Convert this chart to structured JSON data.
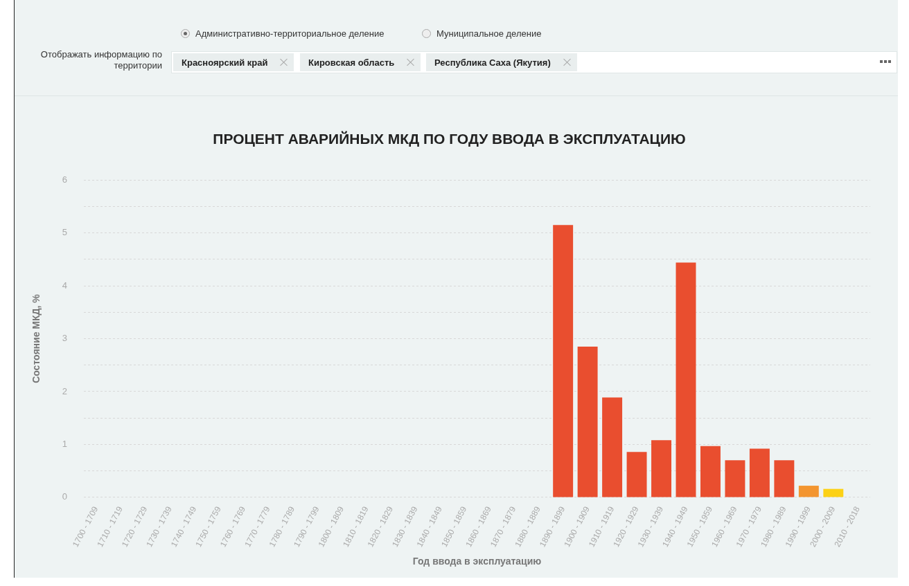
{
  "chart_data": {
    "type": "bar",
    "title": "ПРОЦЕНТ АВАРИЙНЫХ МКД ПО ГОДУ ВВОДА В ЭКСПЛУАТАЦИЮ",
    "xlabel": "Год ввода в эксплуатацию",
    "ylabel": "Состояние МКД, %",
    "annotations": [
      "Административно-территориальное деление",
      "Муниципальное деление",
      "Отображать информацию по территории",
      "Красноярский край",
      "Кировская область",
      "Республика Саха (Якутия)"
    ],
    "categories": [
      "1700 - 1709",
      "1710 - 1719",
      "1720 - 1729",
      "1730 - 1739",
      "1740 - 1749",
      "1750 - 1759",
      "1760 - 1769",
      "1770 - 1779",
      "1780 - 1789",
      "1790 - 1799",
      "1800 - 1809",
      "1810 - 1819",
      "1820 - 1829",
      "1830 - 1839",
      "1840 - 1849",
      "1850 - 1859",
      "1860 - 1869",
      "1870 - 1879",
      "1880 - 1889",
      "1890 - 1899",
      "1900 - 1909",
      "1910 - 1919",
      "1920 - 1929",
      "1930 - 1939",
      "1940 - 1949",
      "1950 - 1959",
      "1960 - 1969",
      "1970 - 1979",
      "1980 - 1989",
      "1990 - 1999",
      "2000 - 2009",
      "2010 - 2018"
    ],
    "values": [
      0,
      0,
      0,
      0,
      0,
      0,
      0,
      0,
      0,
      0,
      0,
      0,
      0,
      0,
      0,
      0,
      0,
      0,
      0,
      5.15,
      2.85,
      1.89,
      0.86,
      1.08,
      4.44,
      0.97,
      0.7,
      0.92,
      0.7,
      0.22,
      0.16,
      0
    ],
    "colors": [
      "#e94e2f",
      "#e94e2f",
      "#e94e2f",
      "#e94e2f",
      "#e94e2f",
      "#e94e2f",
      "#e94e2f",
      "#e94e2f",
      "#e94e2f",
      "#e94e2f",
      "#e94e2f",
      "#e94e2f",
      "#e94e2f",
      "#e94e2f",
      "#e94e2f",
      "#e94e2f",
      "#e94e2f",
      "#e94e2f",
      "#e94e2f",
      "#e94e2f",
      "#e94e2f",
      "#e94e2f",
      "#e94e2f",
      "#e94e2f",
      "#e94e2f",
      "#e94e2f",
      "#e94e2f",
      "#e94e2f",
      "#e94e2f",
      "#f39530",
      "#fcd116",
      "#fcd116"
    ],
    "ylim": [
      0,
      6
    ],
    "yticks": [
      0,
      {
        "value": 0.5,
        "label": null
      },
      1,
      {
        "value": 1.5,
        "label": null
      },
      2,
      {
        "value": 2.5,
        "label": null
      },
      3,
      {
        "value": 3.5,
        "label": null
      },
      4,
      {
        "value": 4.5,
        "label": null
      },
      5,
      {
        "value": 5.5,
        "label": null
      },
      6
    ],
    "grid": "y",
    "legend": false
  }
}
